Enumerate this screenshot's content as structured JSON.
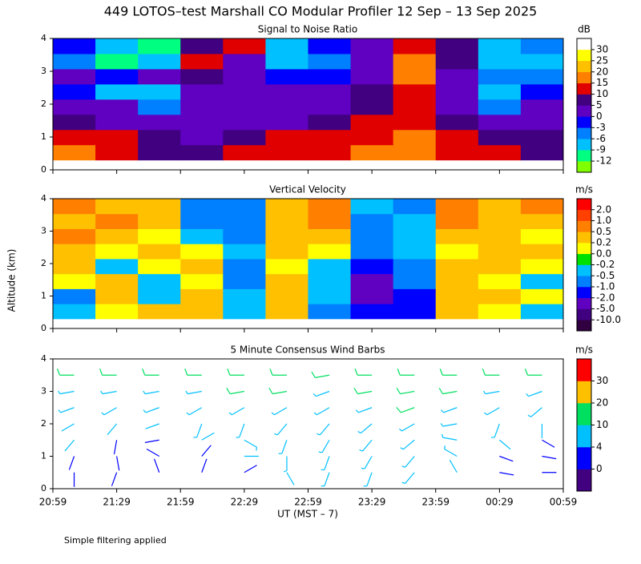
{
  "title": "449 LOTOS–test Marshall CO Modular Profiler 12 Sep – 13 Sep 2025",
  "ylabel": "Altitude (km)",
  "xlabel": "UT  (MST – 7)",
  "note": "Simple filtering applied",
  "time_labels": [
    "20:59",
    "21:29",
    "21:59",
    "22:29",
    "22:59",
    "23:29",
    "23:59",
    "00:29",
    "00:59"
  ],
  "chart_data": [
    {
      "type": "heatmap",
      "title": "Signal to Noise Ratio",
      "ylim": [
        0,
        4
      ],
      "yticks": [
        0,
        1,
        2,
        3,
        4
      ],
      "data_ylim": [
        0.3,
        4
      ],
      "colorbar": {
        "unit": "dB",
        "levels": [
          -12,
          -9,
          -6,
          -3,
          0,
          5,
          10,
          15,
          20,
          25,
          30
        ],
        "colors": [
          "#80ff00",
          "#00ff80",
          "#00c0ff",
          "#0080ff",
          "#0000ff",
          "#6000c0",
          "#400080",
          "#e00000",
          "#ff8000",
          "#ffc000",
          "#ffff00",
          "#ffffff"
        ]
      },
      "z": [
        [
          15,
          12,
          8,
          5,
          10,
          12,
          14,
          15,
          18,
          12,
          10,
          8
        ],
        [
          12,
          10,
          5,
          3,
          5,
          10,
          12,
          12,
          15,
          10,
          8,
          6
        ],
        [
          5,
          3,
          2,
          2,
          2,
          3,
          5,
          10,
          14,
          5,
          3,
          2
        ],
        [
          2,
          0,
          -6,
          0,
          2,
          3,
          3,
          8,
          12,
          2,
          -6,
          2
        ],
        [
          -3,
          -9,
          -9,
          2,
          3,
          0,
          2,
          5,
          12,
          0,
          -9,
          -3
        ],
        [
          0,
          -3,
          2,
          8,
          3,
          -3,
          -3,
          3,
          15,
          3,
          -6,
          -6
        ],
        [
          -6,
          -12,
          -9,
          10,
          3,
          -9,
          -6,
          2,
          15,
          5,
          -9,
          -9
        ],
        [
          -3,
          -9,
          -12,
          8,
          12,
          -9,
          -3,
          0,
          12,
          8,
          -9,
          -6
        ]
      ]
    },
    {
      "type": "heatmap",
      "title": "Vertical Velocity",
      "ylim": [
        0,
        4
      ],
      "yticks": [
        0,
        1,
        2,
        3,
        4
      ],
      "data_ylim": [
        0.3,
        4
      ],
      "colorbar": {
        "unit": "m/s",
        "levels": [
          {
            "value": -10,
            "label": "-10.0"
          },
          {
            "value": -5,
            "label": "-5.0"
          },
          {
            "value": -2,
            "label": "-2.0"
          },
          {
            "value": -1,
            "label": "-1.0"
          },
          -0.5,
          -0.2,
          {
            "value": 0,
            "label": "0.0"
          },
          0.2,
          0.5,
          {
            "value": 1,
            "label": "1.0"
          },
          {
            "value": 2,
            "label": "2.0"
          }
        ],
        "colors": [
          "#300040",
          "#400080",
          "#6000c0",
          "#0000ff",
          "#0080ff",
          "#00c0ff",
          "#00e000",
          "#ffff00",
          "#ffc000",
          "#ff8000",
          "#ff4000",
          "#ff0000"
        ]
      },
      "z": [
        [
          -0.3,
          0.1,
          0.3,
          0.3,
          -0.3,
          0.3,
          -0.7,
          -1.5,
          -1.5,
          0.3,
          0.1,
          -0.3
        ],
        [
          -0.7,
          0.3,
          -0.3,
          0.3,
          -0.3,
          0.3,
          -0.3,
          -2.5,
          -1.5,
          0.3,
          0.3,
          0.1
        ],
        [
          0.1,
          0.3,
          -0.3,
          0.1,
          -0.7,
          0.3,
          -0.3,
          -2.5,
          -0.7,
          0.3,
          0.1,
          -0.3
        ],
        [
          0.3,
          -0.3,
          0.1,
          0.3,
          -0.7,
          0.1,
          -0.3,
          -1.5,
          -0.7,
          0.3,
          0.3,
          0.1
        ],
        [
          0.3,
          0.1,
          0.3,
          0.1,
          -0.3,
          0.3,
          0.1,
          -0.7,
          -0.3,
          0.1,
          0.3,
          0.3
        ],
        [
          0.7,
          0.3,
          0.1,
          -0.3,
          -0.7,
          0.3,
          0.3,
          -0.7,
          -0.3,
          0.3,
          0.3,
          0.1
        ],
        [
          0.3,
          0.7,
          0.3,
          -0.7,
          -0.7,
          0.3,
          0.7,
          -0.7,
          -0.3,
          0.7,
          0.3,
          0.3
        ],
        [
          0.7,
          0.3,
          0.3,
          -0.7,
          -0.7,
          0.3,
          0.7,
          -0.3,
          -0.7,
          0.7,
          0.3,
          0.7
        ]
      ]
    },
    {
      "type": "barbs",
      "title": "5 Minute Consensus Wind Barbs",
      "ylim": [
        0,
        4
      ],
      "yticks": [
        0,
        1,
        2,
        3,
        4
      ],
      "altitudes": [
        0.5,
        1.0,
        1.5,
        2.0,
        2.5,
        3.0,
        3.5
      ],
      "colorbar": {
        "unit": "m/s",
        "levels": [
          0,
          4,
          10,
          20,
          30
        ],
        "colors": [
          "#400080",
          "#0000ff",
          "#00c0ff",
          "#00e060",
          "#ffc000",
          "#ff0000"
        ]
      },
      "speed": [
        [
          3,
          3,
          2,
          2,
          3,
          4,
          5,
          5,
          6,
          4,
          3,
          2
        ],
        [
          3,
          3,
          2,
          3,
          4,
          5,
          6,
          6,
          7,
          5,
          3,
          3
        ],
        [
          4,
          3,
          3,
          4,
          5,
          6,
          7,
          7,
          8,
          6,
          4,
          3
        ],
        [
          4,
          4,
          4,
          5,
          6,
          7,
          7,
          8,
          9,
          7,
          5,
          4
        ],
        [
          6,
          6,
          5,
          7,
          8,
          8,
          8,
          9,
          10,
          8,
          7,
          6
        ],
        [
          9,
          9,
          8,
          9,
          10,
          10,
          9,
          11,
          12,
          10,
          9,
          9
        ],
        [
          12,
          12,
          11,
          12,
          13,
          12,
          11,
          13,
          14,
          12,
          12,
          12
        ]
      ],
      "direction": [
        [
          180,
          200,
          340,
          20,
          60,
          150,
          200,
          200,
          220,
          330,
          100,
          90
        ],
        [
          200,
          170,
          300,
          40,
          90,
          180,
          200,
          210,
          220,
          300,
          110,
          100
        ],
        [
          220,
          190,
          260,
          60,
          120,
          200,
          210,
          220,
          230,
          280,
          130,
          120
        ],
        [
          240,
          220,
          250,
          200,
          200,
          220,
          220,
          230,
          240,
          260,
          200,
          180
        ],
        [
          250,
          240,
          250,
          240,
          240,
          240,
          240,
          250,
          250,
          250,
          240,
          230
        ],
        [
          260,
          260,
          260,
          260,
          260,
          260,
          250,
          260,
          260,
          260,
          260,
          250
        ],
        [
          270,
          270,
          270,
          270,
          270,
          270,
          260,
          270,
          270,
          270,
          270,
          270
        ]
      ]
    }
  ]
}
